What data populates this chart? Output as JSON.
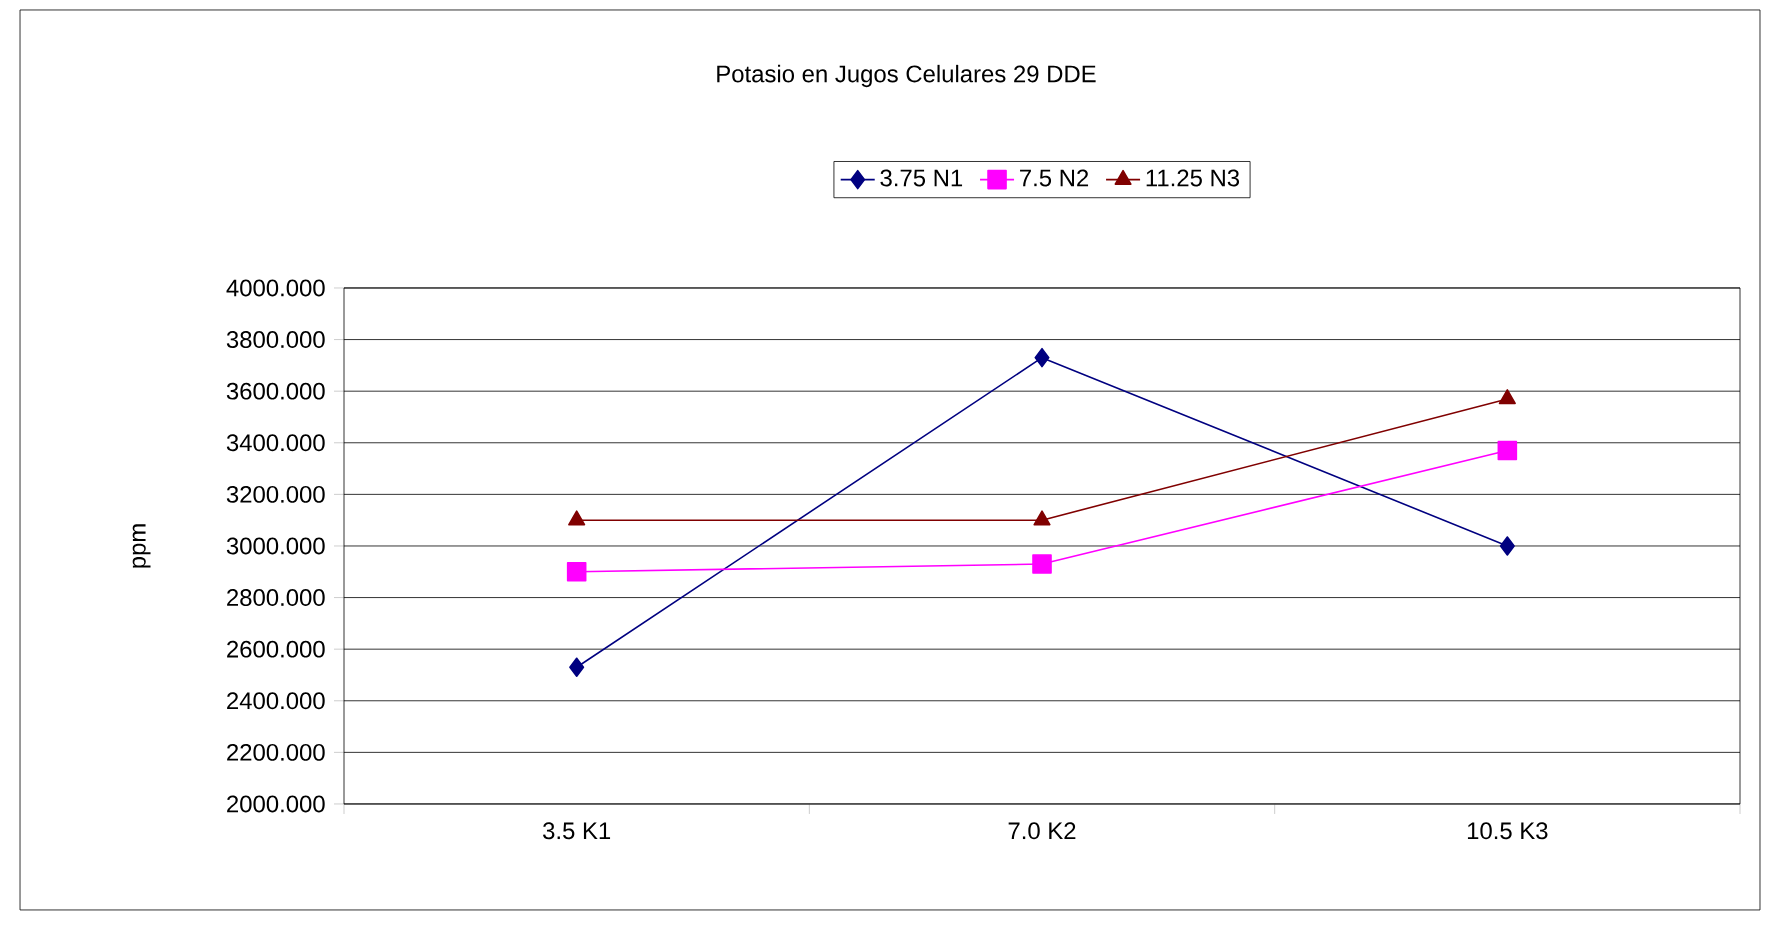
{
  "chart_data": {
    "type": "line",
    "title": "Potasio en Jugos Celulares 29 DDE",
    "ylabel": "ppm",
    "categories": [
      "3.5 K1",
      "7.0 K2",
      "10.5 K3"
    ],
    "series": [
      {
        "name": "3.75 N1",
        "color": "#000080",
        "marker": "diamond",
        "values": [
          2530,
          3730,
          3000
        ]
      },
      {
        "name": "7.5 N2",
        "color": "#ff00ff",
        "marker": "square",
        "values": [
          2900,
          2930,
          3370
        ]
      },
      {
        "name": "11.25 N3",
        "color": "#800000",
        "marker": "triangle",
        "values": [
          3100,
          3100,
          3570
        ]
      }
    ],
    "ylim": [
      2000,
      4000
    ],
    "yticks": [
      {
        "value": 2000,
        "label": "2000.000"
      },
      {
        "value": 2200,
        "label": "2200.000"
      },
      {
        "value": 2400,
        "label": "2400.000"
      },
      {
        "value": 2600,
        "label": "2600.000"
      },
      {
        "value": 2800,
        "label": "2800.000"
      },
      {
        "value": 3000,
        "label": "3000.000"
      },
      {
        "value": 3200,
        "label": "3200.000"
      },
      {
        "value": 3400,
        "label": "3400.000"
      },
      {
        "value": 3600,
        "label": "3600.000"
      },
      {
        "value": 3800,
        "label": "3800.000"
      },
      {
        "value": 4000,
        "label": "4000.000"
      }
    ],
    "grid": "y",
    "legend": "top"
  }
}
